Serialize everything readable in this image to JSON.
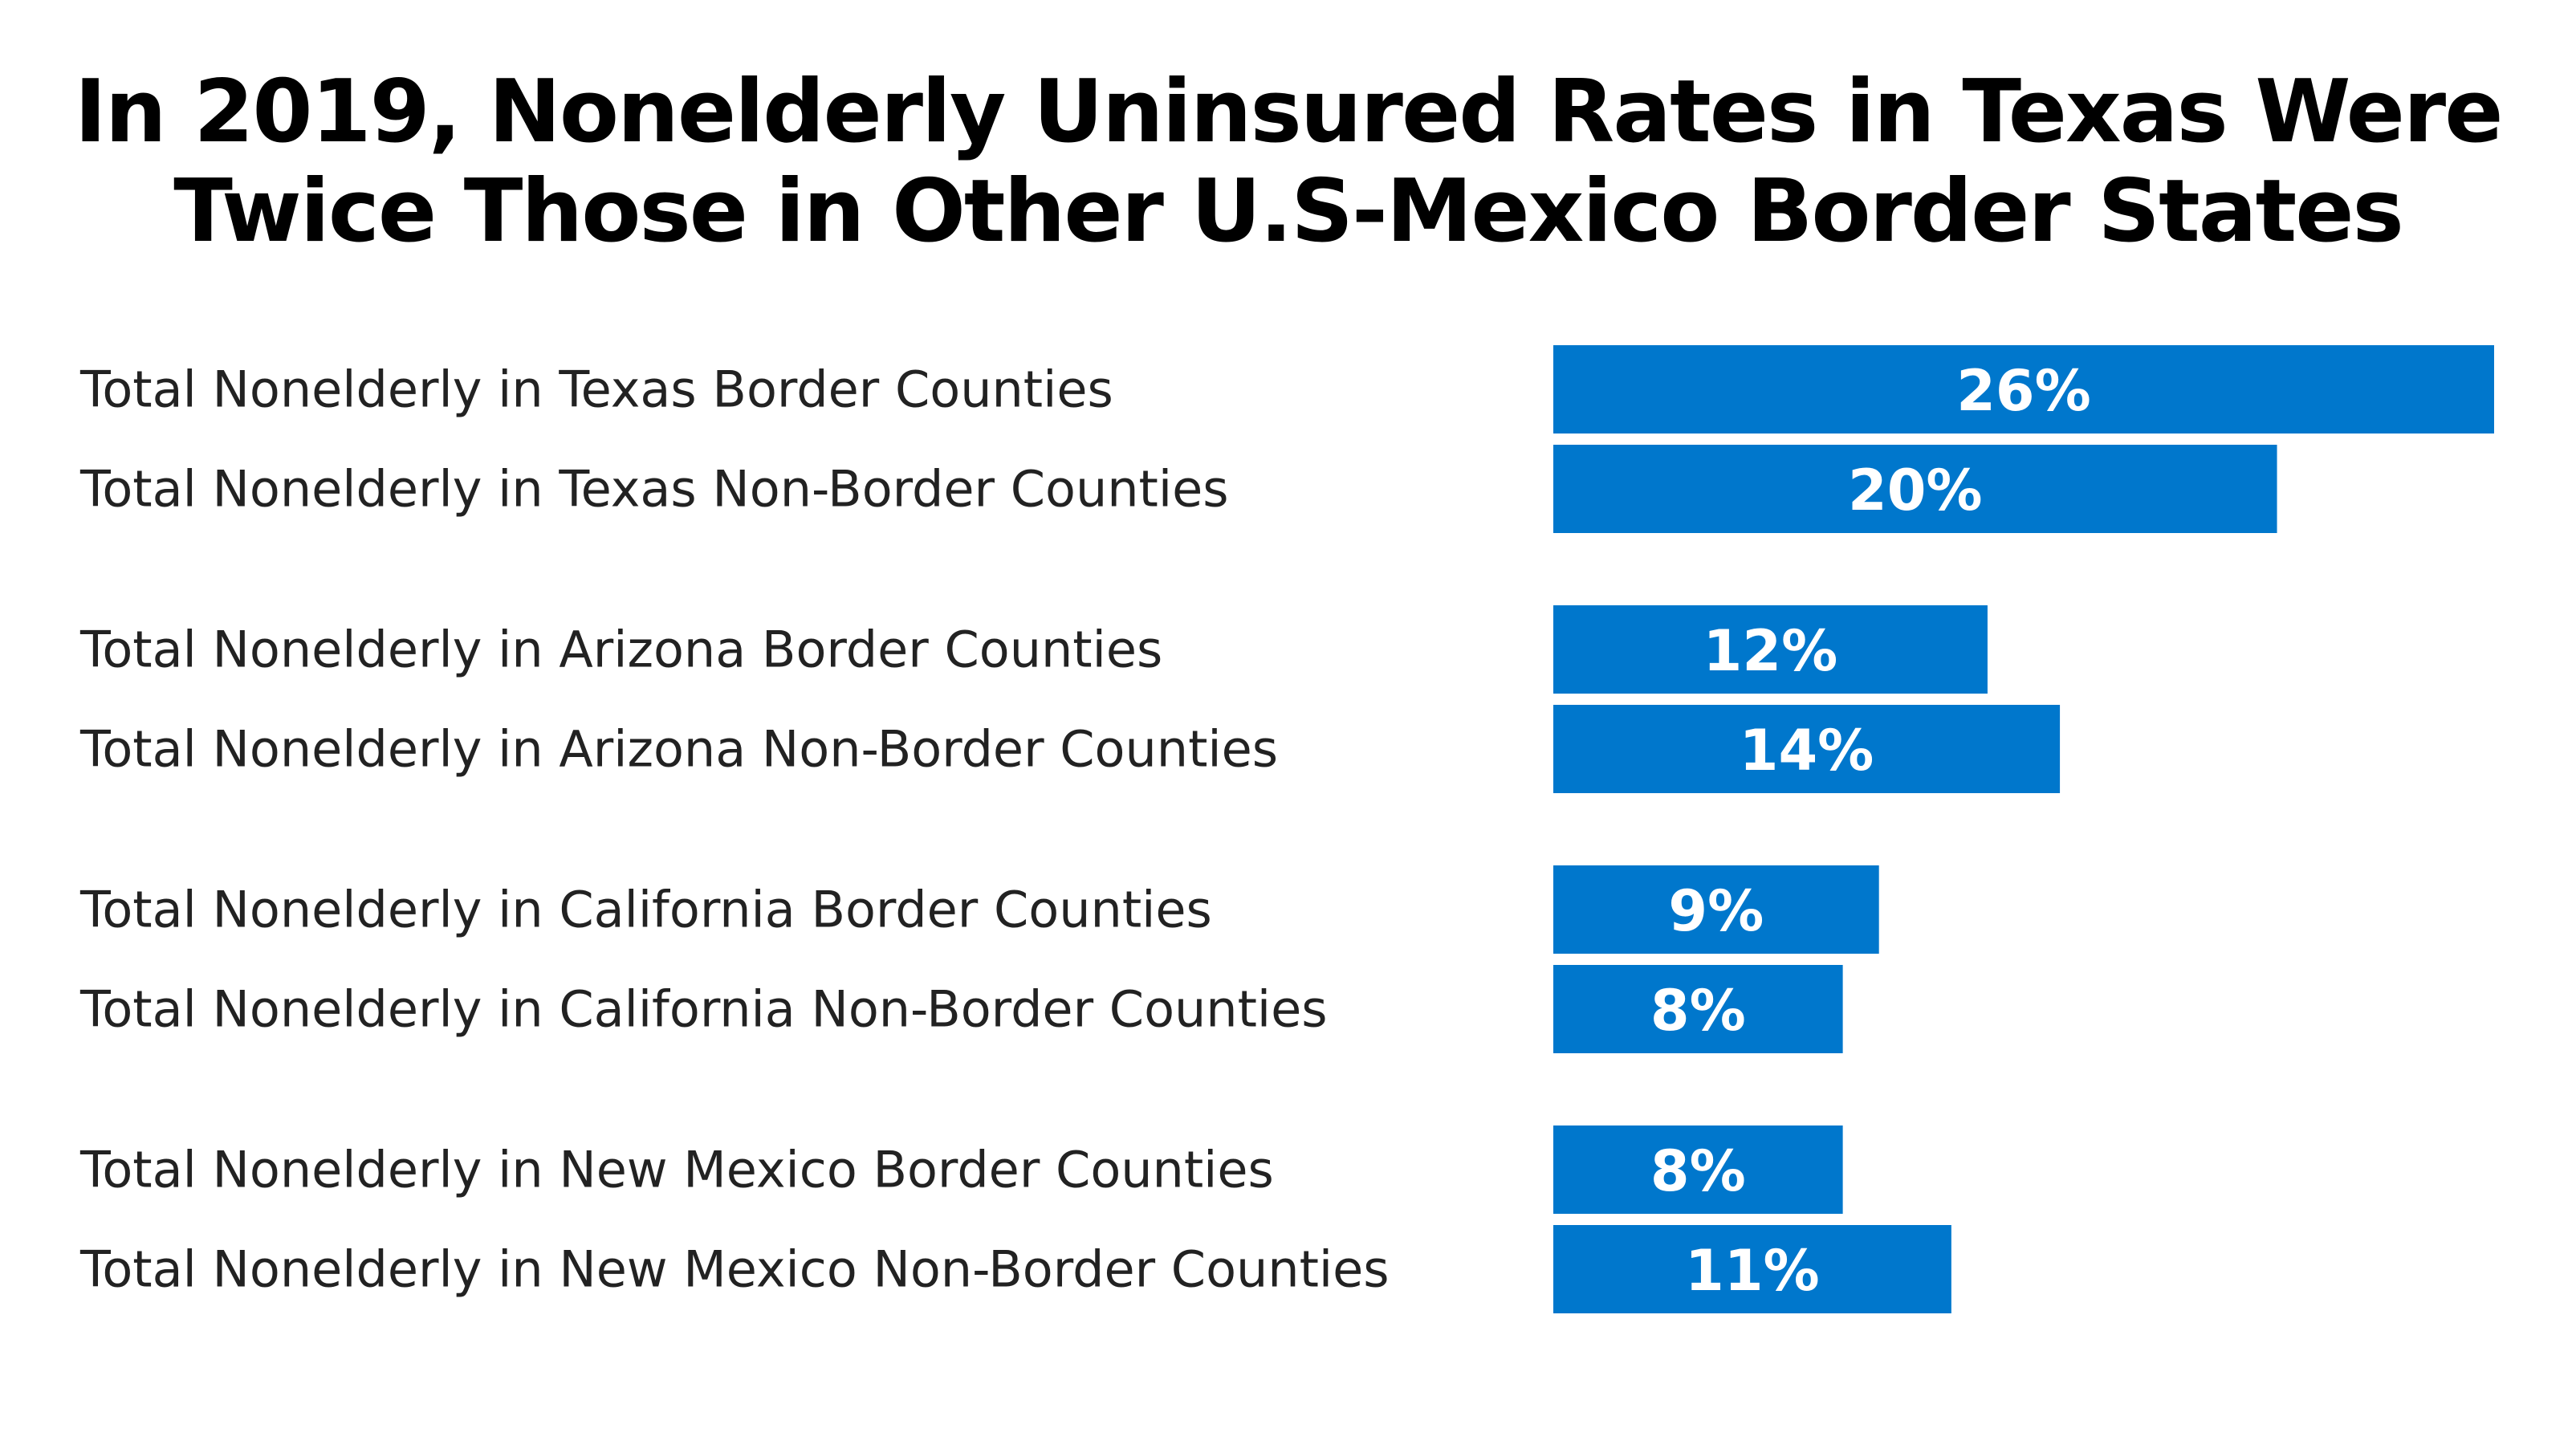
{
  "title": {
    "line1": "In 2019, Nonelderly Uninsured Rates in Texas Were",
    "line2": "Twice Those in Other U.S-Mexico Border States"
  },
  "colors": {
    "bar": "#0077CC",
    "bar_text": "#FFFFFF",
    "label_text": "#222222",
    "title_text": "#000000"
  },
  "chart_data": {
    "type": "bar",
    "orientation": "horizontal",
    "title": "In 2019, Nonelderly Uninsured Rates in Texas Were Twice Those in Other U.S-Mexico Border States",
    "xlabel": "",
    "ylabel": "",
    "xlim": [
      0,
      26
    ],
    "grid": false,
    "legend": "none",
    "groups": [
      "Texas",
      "Arizona",
      "California",
      "New Mexico"
    ],
    "categories": [
      "Total Nonelderly in Texas Border Counties",
      "Total Nonelderly in Texas Non-Border Counties",
      "Total Nonelderly in Arizona Border Counties",
      "Total Nonelderly in Arizona Non-Border Counties",
      "Total Nonelderly in California Border Counties",
      "Total Nonelderly in California Non-Border Counties",
      "Total Nonelderly in New Mexico Border Counties",
      "Total Nonelderly in New Mexico Non-Border Counties"
    ],
    "values": [
      26,
      20,
      12,
      14,
      9,
      8,
      8,
      11
    ],
    "value_labels": [
      "26%",
      "20%",
      "12%",
      "14%",
      "9%",
      "8%",
      "8%",
      "11%"
    ],
    "group_index": [
      0,
      0,
      1,
      1,
      2,
      2,
      3,
      3
    ]
  }
}
